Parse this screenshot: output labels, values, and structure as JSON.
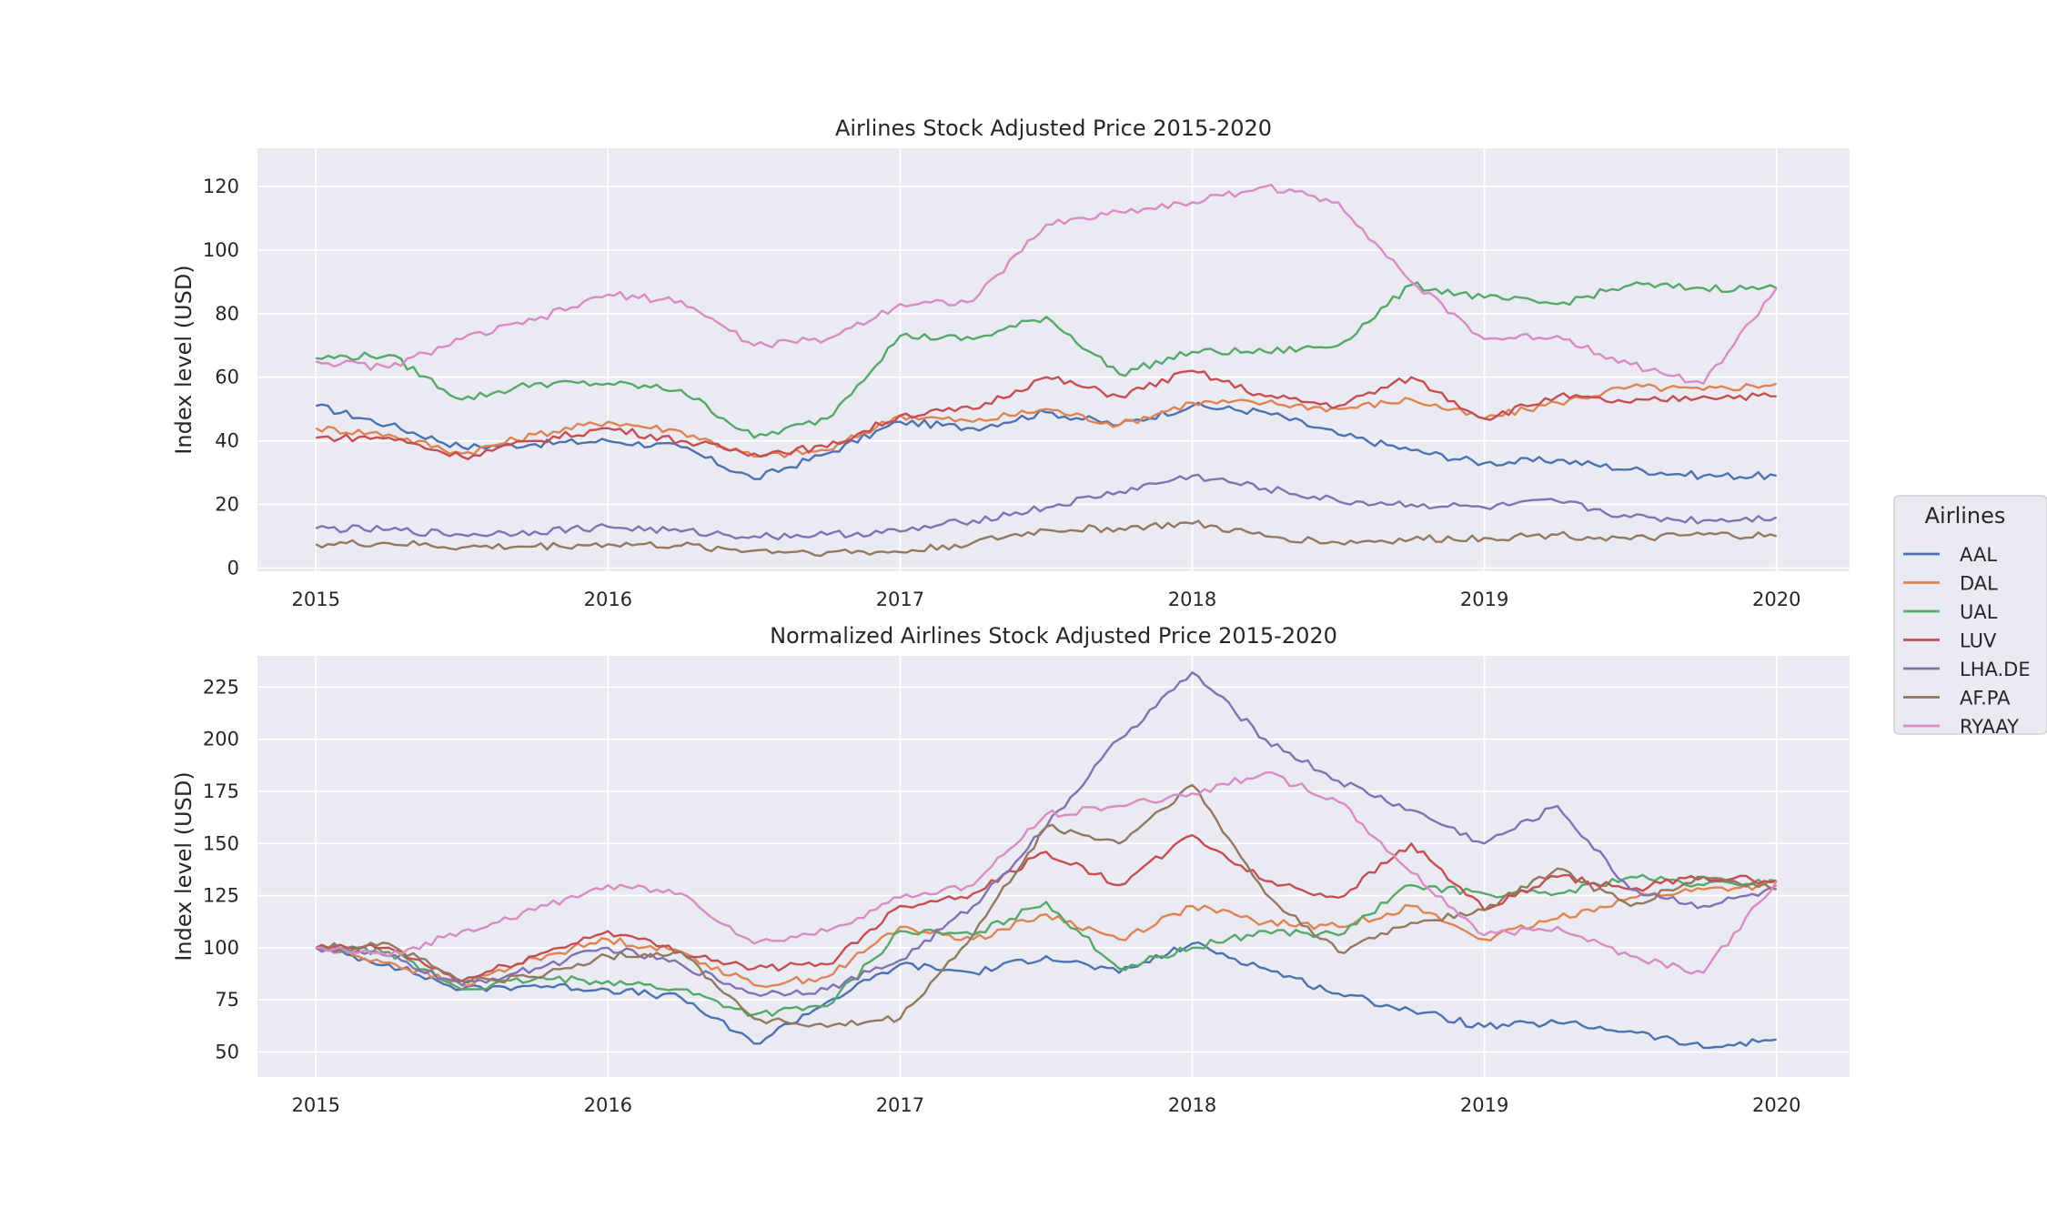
{
  "legend": {
    "title": "Airlines",
    "placement": "right"
  },
  "x_ticks": [
    "2015",
    "2016",
    "2017",
    "2018",
    "2019",
    "2020"
  ],
  "chart_data": [
    {
      "type": "line",
      "title": "Airlines Stock Adjusted Price 2015-2020",
      "xlabel": "",
      "ylabel": "Index level (USD)",
      "xlim": [
        2014.8,
        2020.25
      ],
      "ylim": [
        -1,
        132
      ],
      "yticks": [
        0,
        20,
        40,
        60,
        80,
        100,
        120
      ],
      "grid": true,
      "x": [
        2015.0,
        2015.25,
        2015.5,
        2015.75,
        2016.0,
        2016.25,
        2016.5,
        2016.75,
        2017.0,
        2017.25,
        2017.5,
        2017.75,
        2018.0,
        2018.25,
        2018.5,
        2018.75,
        2019.0,
        2019.25,
        2019.5,
        2019.75,
        2020.0
      ],
      "series": [
        {
          "name": "AAL",
          "color": "#4c72b0",
          "values": [
            51,
            45,
            38,
            39,
            40,
            38,
            28,
            36,
            46,
            44,
            49,
            45,
            51,
            49,
            42,
            37,
            33,
            34,
            31,
            29,
            29
          ]
        },
        {
          "name": "DAL",
          "color": "#dd8452",
          "values": [
            44,
            42,
            36,
            42,
            46,
            43,
            35,
            37,
            48,
            46,
            50,
            45,
            52,
            52,
            50,
            53,
            47,
            52,
            57,
            56,
            58
          ]
        },
        {
          "name": "UAL",
          "color": "#55a868",
          "values": [
            66,
            67,
            53,
            58,
            58,
            56,
            41,
            47,
            73,
            72,
            79,
            61,
            68,
            68,
            70,
            89,
            85,
            83,
            89,
            88,
            88
          ]
        },
        {
          "name": "LUV",
          "color": "#c44e52",
          "values": [
            41,
            41,
            35,
            40,
            44,
            40,
            36,
            38,
            48,
            50,
            60,
            54,
            62,
            54,
            51,
            60,
            47,
            54,
            52,
            54,
            54
          ]
        },
        {
          "name": "LHA.DE",
          "color": "#8172b3",
          "values": [
            12.5,
            12.0,
            10.5,
            11.5,
            13.0,
            11.5,
            10.0,
            10.5,
            11.5,
            15.0,
            19.0,
            24.0,
            29.0,
            25.0,
            21.0,
            20.0,
            19.0,
            21.0,
            16.0,
            15.0,
            16.0
          ]
        },
        {
          "name": "AF.PA",
          "color": "#937860",
          "values": [
            7.5,
            7.8,
            6.5,
            6.8,
            7.5,
            7.0,
            5.5,
            5.0,
            5.0,
            8.0,
            12.0,
            12.5,
            14.0,
            10.0,
            8.0,
            9.0,
            9.5,
            10.5,
            9.0,
            10.5,
            10.0
          ]
        },
        {
          "name": "RYAAY",
          "color": "#da8bc3",
          "values": [
            65,
            63,
            72,
            78,
            86,
            84,
            70,
            72,
            83,
            84,
            108,
            112,
            115,
            120,
            115,
            90,
            72,
            73,
            64,
            58,
            88
          ]
        }
      ]
    },
    {
      "type": "line",
      "title": "Normalized Airlines Stock Adjusted Price 2015-2020",
      "xlabel": "",
      "ylabel": "Index level (USD)",
      "xlim": [
        2014.8,
        2020.25
      ],
      "ylim": [
        38,
        240
      ],
      "yticks": [
        50,
        75,
        100,
        125,
        150,
        175,
        200,
        225
      ],
      "grid": true,
      "x": [
        2015.0,
        2015.25,
        2015.5,
        2015.75,
        2016.0,
        2016.25,
        2016.5,
        2016.75,
        2017.0,
        2017.25,
        2017.5,
        2017.75,
        2018.0,
        2018.25,
        2018.5,
        2018.75,
        2019.0,
        2019.25,
        2019.5,
        2019.75,
        2020.0
      ],
      "series": [
        {
          "name": "AAL",
          "color": "#4c72b0",
          "values": [
            100,
            92,
            80,
            82,
            80,
            76,
            54,
            74,
            92,
            88,
            96,
            88,
            102,
            90,
            78,
            70,
            62,
            64,
            60,
            52,
            56
          ]
        },
        {
          "name": "DAL",
          "color": "#dd8452",
          "values": [
            100,
            93,
            82,
            95,
            104,
            98,
            82,
            86,
            110,
            104,
            116,
            104,
            120,
            112,
            110,
            120,
            104,
            114,
            124,
            128,
            130
          ]
        },
        {
          "name": "UAL",
          "color": "#55a868",
          "values": [
            100,
            98,
            80,
            85,
            84,
            80,
            68,
            72,
            108,
            106,
            122,
            90,
            100,
            108,
            106,
            130,
            126,
            126,
            134,
            130,
            132
          ]
        },
        {
          "name": "LUV",
          "color": "#c44e52",
          "values": [
            100,
            100,
            84,
            96,
            108,
            98,
            90,
            92,
            120,
            126,
            146,
            130,
            154,
            132,
            124,
            150,
            118,
            134,
            128,
            134,
            132
          ]
        },
        {
          "name": "LHA.DE",
          "color": "#8172b3",
          "values": [
            100,
            96,
            82,
            90,
            100,
            92,
            78,
            80,
            94,
            120,
            158,
            200,
            232,
            200,
            180,
            166,
            150,
            168,
            128,
            120,
            128
          ]
        },
        {
          "name": "AF.PA",
          "color": "#937860",
          "values": [
            100,
            102,
            84,
            86,
            96,
            98,
            66,
            62,
            66,
            106,
            158,
            150,
            178,
            126,
            98,
            112,
            118,
            138,
            120,
            134,
            128
          ]
        },
        {
          "name": "RYAAY",
          "color": "#da8bc3",
          "values": [
            100,
            96,
            108,
            118,
            130,
            126,
            102,
            108,
            124,
            130,
            164,
            168,
            174,
            184,
            170,
            136,
            106,
            110,
            96,
            88,
            132
          ]
        }
      ]
    }
  ]
}
